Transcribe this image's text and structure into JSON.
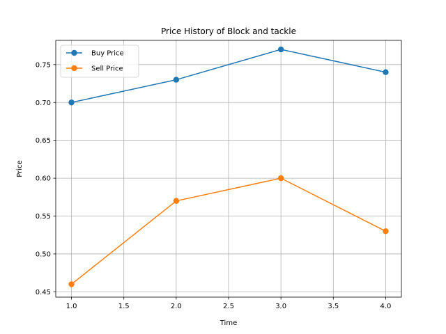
{
  "chart_data": {
    "type": "line",
    "title": "Price History of Block and tackle",
    "xlabel": "Time",
    "ylabel": "Price",
    "xlim": [
      0.85,
      4.15
    ],
    "ylim": [
      0.443,
      0.782
    ],
    "xticks": [
      1.0,
      1.5,
      2.0,
      2.5,
      3.0,
      3.5,
      4.0
    ],
    "xtick_labels": [
      "1.0",
      "1.5",
      "2.0",
      "2.5",
      "3.0",
      "3.5",
      "4.0"
    ],
    "yticks": [
      0.45,
      0.5,
      0.55,
      0.6,
      0.65,
      0.7,
      0.75
    ],
    "ytick_labels": [
      "0.45",
      "0.50",
      "0.55",
      "0.60",
      "0.65",
      "0.70",
      "0.75"
    ],
    "grid": true,
    "legend_position": "top-left",
    "x": [
      1.0,
      2.0,
      3.0,
      4.0
    ],
    "series": [
      {
        "name": "Buy Price",
        "values": [
          0.7,
          0.73,
          0.77,
          0.74
        ],
        "color": "#1f77b4"
      },
      {
        "name": "Sell Price",
        "values": [
          0.46,
          0.57,
          0.6,
          0.53
        ],
        "color": "#ff7f0e"
      }
    ]
  }
}
